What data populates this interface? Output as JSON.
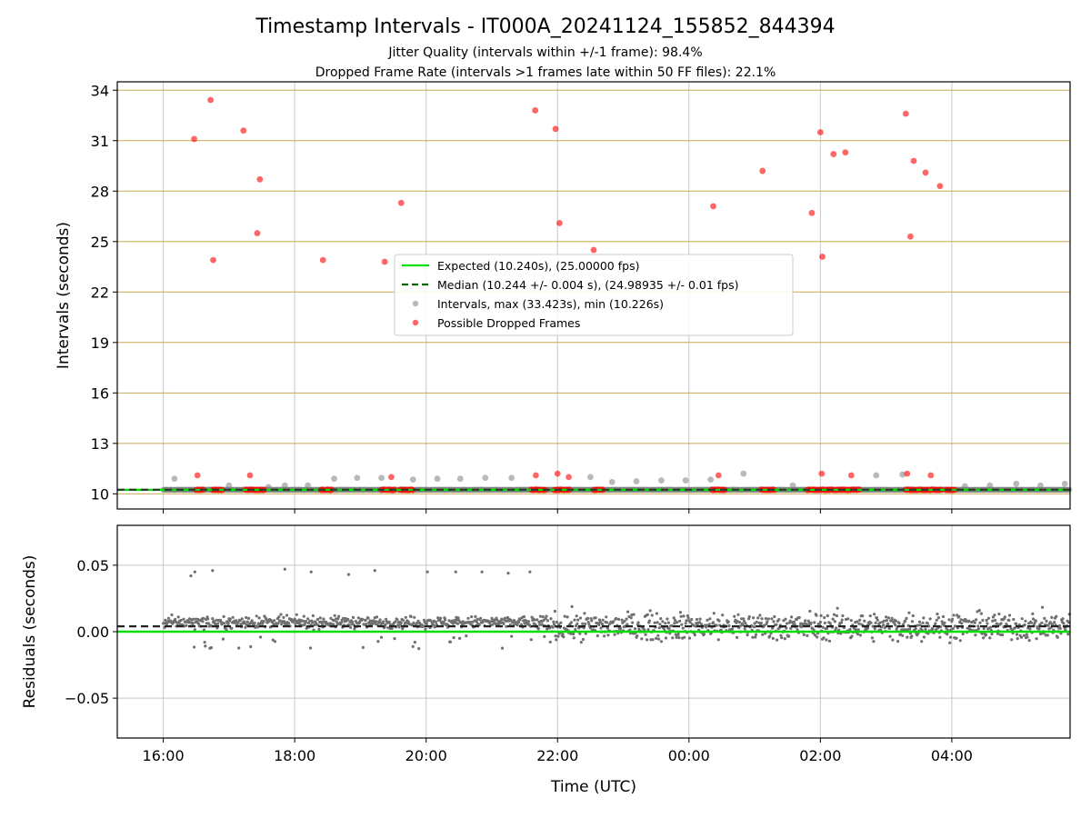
{
  "title": "Timestamp Intervals - IT000A_20241124_155852_844394",
  "subtitle_lines": [
    "Jitter Quality (intervals within +/-1 frame): 98.4%",
    "Dropped Frame Rate (intervals >1 frames late within 50 FF files): 22.1%"
  ],
  "colors": {
    "expected": "#00e000",
    "median": "#006400",
    "intervals": "#808080",
    "dropped": "#ff0000",
    "hgrid_top": "#c8a850",
    "grid": "#c8c8c8"
  },
  "chart_data": [
    {
      "type": "scatter",
      "panel": "intervals",
      "ylabel": "Intervals (seconds)",
      "xlabel": "",
      "x_range_hours": [
        15.3,
        29.8
      ],
      "ylim": [
        9.1,
        34.5
      ],
      "x_ticks": [
        {
          "t": 16,
          "label": "16:00"
        },
        {
          "t": 18,
          "label": "18:00"
        },
        {
          "t": 20,
          "label": "20:00"
        },
        {
          "t": 22,
          "label": "22:00"
        },
        {
          "t": 24,
          "label": "00:00"
        },
        {
          "t": 26,
          "label": "02:00"
        },
        {
          "t": 28,
          "label": "04:00"
        }
      ],
      "y_ticks": [
        10,
        13,
        16,
        19,
        22,
        25,
        28,
        31,
        34
      ],
      "grid": true,
      "legend_position": "center",
      "expected_value": 10.24,
      "median_value": 10.244,
      "legend": [
        "Expected (10.240s), (25.00000 fps)",
        "Median (10.244 +/- 0.004 s), (24.98935 +/- 0.01 fps)",
        "Intervals, max (33.423s), min (10.226s)",
        "Possible Dropped Frames"
      ],
      "time_range": [
        16.0,
        29.8
      ],
      "dropped_points": [
        [
          16.47,
          31.1
        ],
        [
          16.72,
          33.42
        ],
        [
          16.76,
          23.9
        ],
        [
          17.22,
          31.6
        ],
        [
          17.47,
          28.7
        ],
        [
          17.43,
          25.5
        ],
        [
          18.43,
          23.9
        ],
        [
          19.37,
          23.8
        ],
        [
          19.62,
          27.3
        ],
        [
          21.66,
          32.8
        ],
        [
          21.97,
          31.7
        ],
        [
          22.03,
          26.1
        ],
        [
          22.55,
          24.5
        ],
        [
          24.37,
          27.1
        ],
        [
          25.12,
          29.2
        ],
        [
          25.87,
          26.7
        ],
        [
          26.0,
          31.5
        ],
        [
          26.03,
          24.1
        ],
        [
          26.2,
          30.2
        ],
        [
          26.38,
          30.3
        ],
        [
          27.3,
          32.6
        ],
        [
          27.37,
          25.3
        ],
        [
          27.42,
          29.8
        ],
        [
          27.6,
          29.1
        ],
        [
          27.82,
          28.3
        ],
        [
          16.52,
          11.1
        ],
        [
          17.32,
          11.1
        ],
        [
          19.47,
          11.0
        ],
        [
          21.67,
          11.1
        ],
        [
          22.0,
          11.2
        ],
        [
          22.17,
          11.0
        ],
        [
          24.45,
          11.1
        ],
        [
          26.02,
          11.2
        ],
        [
          26.47,
          11.1
        ],
        [
          27.32,
          11.2
        ],
        [
          27.68,
          11.1
        ]
      ],
      "dropped_clusters": [
        [
          16.5,
          16.62
        ],
        [
          16.75,
          16.9
        ],
        [
          17.25,
          17.55
        ],
        [
          18.4,
          18.58
        ],
        [
          19.32,
          19.52
        ],
        [
          19.6,
          19.8
        ],
        [
          21.6,
          21.82
        ],
        [
          21.95,
          22.2
        ],
        [
          22.55,
          22.7
        ],
        [
          24.35,
          24.55
        ],
        [
          25.1,
          25.3
        ],
        [
          25.8,
          26.6
        ],
        [
          27.3,
          27.85
        ],
        [
          27.9,
          28.05
        ]
      ],
      "gray_outliers": [
        [
          16.17,
          10.9
        ],
        [
          17.0,
          10.5
        ],
        [
          17.6,
          10.4
        ],
        [
          17.85,
          10.5
        ],
        [
          18.2,
          10.5
        ],
        [
          18.6,
          10.9
        ],
        [
          18.95,
          10.95
        ],
        [
          19.32,
          10.95
        ],
        [
          19.8,
          10.85
        ],
        [
          20.17,
          10.9
        ],
        [
          20.52,
          10.9
        ],
        [
          20.9,
          10.95
        ],
        [
          21.3,
          10.95
        ],
        [
          22.5,
          11.0
        ],
        [
          22.83,
          10.7
        ],
        [
          23.2,
          10.75
        ],
        [
          23.58,
          10.8
        ],
        [
          23.95,
          10.8
        ],
        [
          24.33,
          10.85
        ],
        [
          24.83,
          11.2
        ],
        [
          25.58,
          10.5
        ],
        [
          26.85,
          11.1
        ],
        [
          27.25,
          11.15
        ],
        [
          28.2,
          10.45
        ],
        [
          28.58,
          10.5
        ],
        [
          28.98,
          10.6
        ],
        [
          29.35,
          10.5
        ],
        [
          29.72,
          10.6
        ]
      ]
    },
    {
      "type": "scatter",
      "panel": "residuals",
      "ylabel": "Residuals (seconds)",
      "xlabel": "Time (UTC)",
      "x_range_hours": [
        15.3,
        29.8
      ],
      "ylim": [
        -0.08,
        0.08
      ],
      "y_ticks": [
        {
          "v": 0.05,
          "label": "0.05"
        },
        {
          "v": 0.0,
          "label": "0.00"
        },
        {
          "v": -0.05,
          "label": "−0.05"
        }
      ],
      "grid": true,
      "expected_residual": 0.0,
      "median_residual": 0.004,
      "spike_points": [
        [
          16.42,
          0.042
        ],
        [
          16.48,
          0.045
        ],
        [
          16.75,
          0.046
        ],
        [
          17.85,
          0.047
        ],
        [
          18.25,
          0.045
        ],
        [
          18.82,
          0.043
        ],
        [
          19.22,
          0.046
        ],
        [
          20.02,
          0.045
        ],
        [
          20.45,
          0.045
        ],
        [
          20.85,
          0.045
        ],
        [
          21.25,
          0.044
        ],
        [
          21.58,
          0.045
        ]
      ]
    }
  ]
}
